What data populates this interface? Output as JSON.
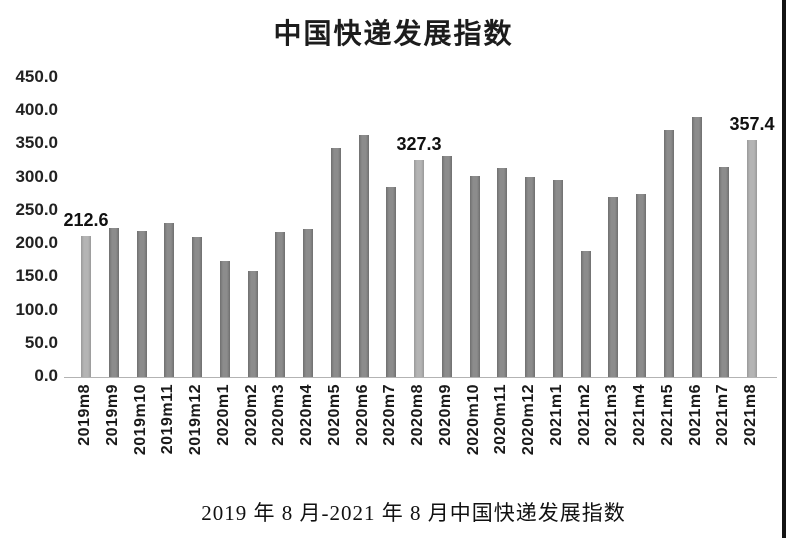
{
  "page": {
    "title": "中国快递发展指数",
    "caption": "2019 年 8 月-2021 年 8 月中国快递发展指数"
  },
  "chart_data": {
    "type": "bar",
    "title": "中国快递发展指数",
    "categories": [
      "2019m8",
      "2019m9",
      "2019m10",
      "2019m11",
      "2019m12",
      "2020m1",
      "2020m2",
      "2020m3",
      "2020m4",
      "2020m5",
      "2020m6",
      "2020m7",
      "2020m8",
      "2020m9",
      "2020m10",
      "2020m11",
      "2020m12",
      "2021m1",
      "2021m2",
      "2021m3",
      "2021m4",
      "2021m5",
      "2021m6",
      "2021m7",
      "2021m8"
    ],
    "values": [
      212.6,
      224,
      219,
      232,
      210,
      174,
      159,
      218,
      223,
      345,
      364,
      286,
      327.3,
      332,
      303,
      314,
      301,
      296,
      189,
      271,
      276,
      371,
      391,
      316,
      357.4
    ],
    "labeled_points": [
      {
        "index": 0,
        "label": "212.6"
      },
      {
        "index": 12,
        "label": "327.3"
      },
      {
        "index": 24,
        "label": "357.4"
      }
    ],
    "highlighted_indices": [
      0,
      12,
      24
    ],
    "yticks": [
      "450.0",
      "400.0",
      "350.0",
      "300.0",
      "250.0",
      "200.0",
      "150.0",
      "100.0",
      "50.0",
      "0.0"
    ],
    "ylim": [
      0,
      450
    ],
    "xlabel": "",
    "ylabel": "",
    "grid": false,
    "legend": null,
    "colors": {
      "bar_default": "#7f7f7f",
      "bar_highlight": "#a8a8a8",
      "axis_line": "#b3b3b3",
      "border_line": "#141414",
      "text": "#1a1a1a"
    }
  }
}
